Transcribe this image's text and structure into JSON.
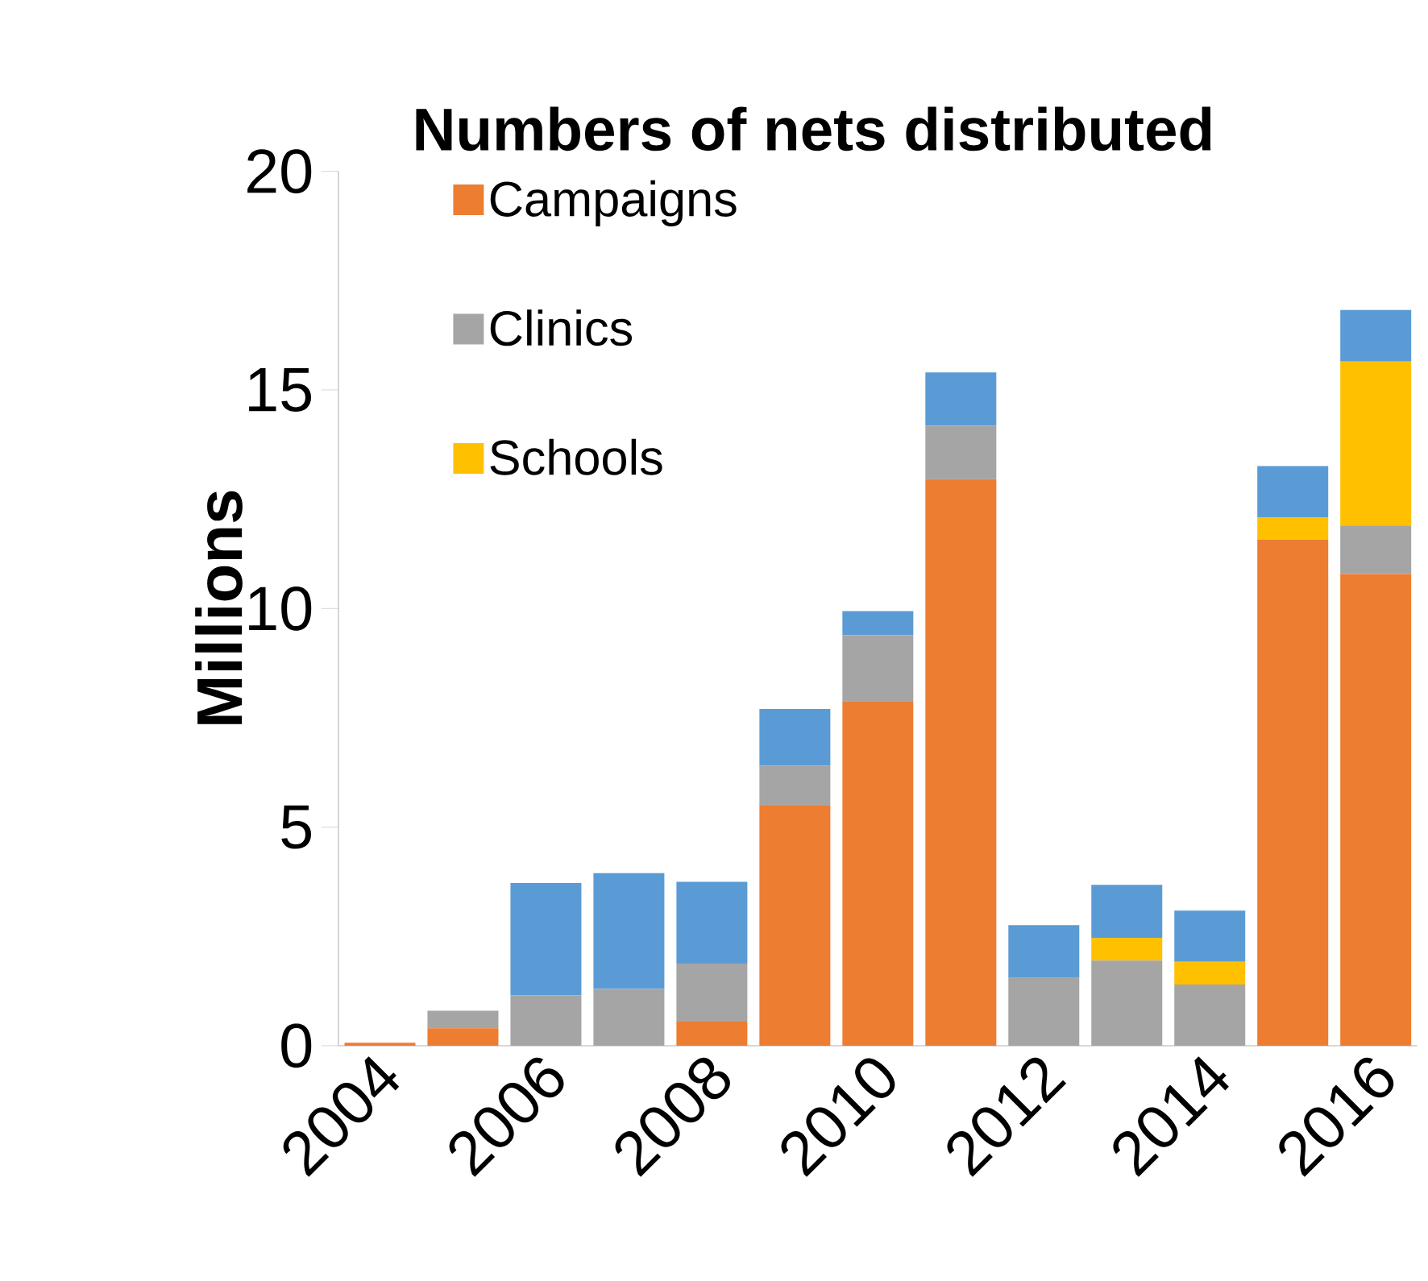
{
  "chart_data": {
    "type": "bar",
    "stacked": true,
    "title": "Numbers of nets distributed",
    "ylabel": "Millions",
    "categories": [
      "2004",
      null,
      "2006",
      null,
      "2008",
      null,
      "2010",
      null,
      "2012",
      null,
      "2014",
      null,
      "2016"
    ],
    "series": [
      {
        "name": "Campaigns",
        "color": "#ed7d31",
        "values": [
          0.07,
          0.4,
          0,
          0,
          0.55,
          5.49,
          7.88,
          12.96,
          0,
          0,
          0,
          11.57,
          10.79
        ]
      },
      {
        "name": "Clinics",
        "color": "#a5a5a5",
        "values": [
          0,
          0.4,
          1.15,
          1.3,
          1.33,
          0.92,
          1.51,
          1.22,
          1.55,
          1.95,
          1.4,
          0,
          1.11
        ]
      },
      {
        "name": "Schools",
        "color": "#ffc000",
        "values": [
          0,
          0,
          0,
          0,
          0,
          0,
          0,
          0,
          0,
          0.52,
          0.52,
          0.51,
          3.75
        ]
      },
      {
        "color": "#5b9bd5",
        "values": [
          0,
          0,
          2.57,
          2.65,
          1.87,
          1.29,
          0.55,
          1.22,
          1.21,
          1.21,
          1.17,
          1.18,
          1.18
        ]
      }
    ],
    "ylim": [
      0,
      20
    ],
    "yticks": [
      0,
      5,
      10,
      15,
      20
    ],
    "legend": "top left",
    "grid": false
  }
}
